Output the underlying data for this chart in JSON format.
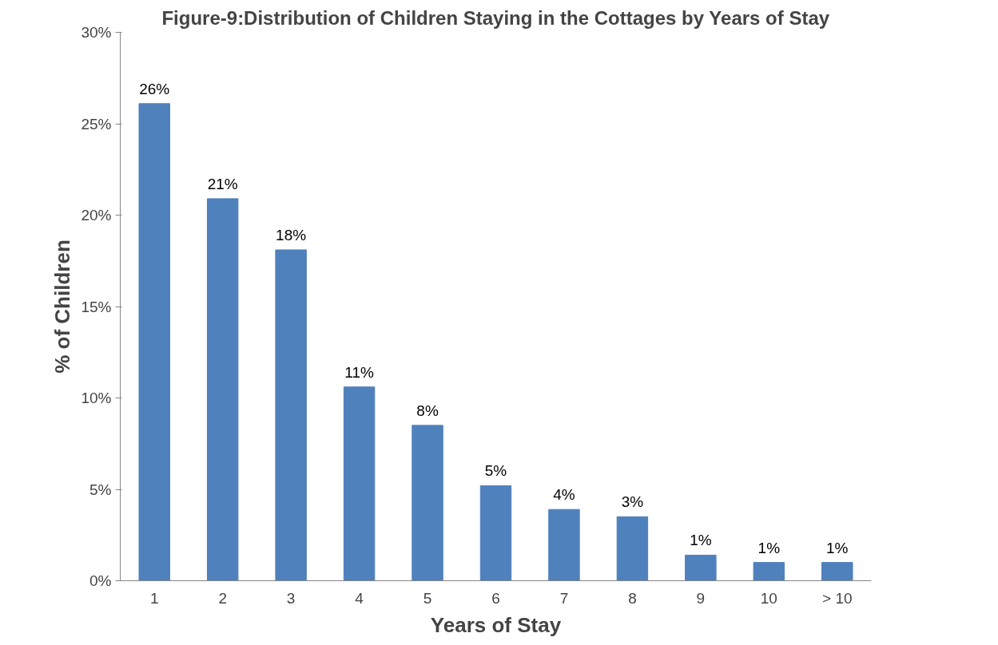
{
  "chart_data": {
    "type": "bar",
    "title": "Figure-9:Distribution of Children Staying in the Cottages by Years of Stay",
    "xlabel": "Years of Stay",
    "ylabel": "% of Children",
    "categories": [
      "1",
      "2",
      "3",
      "4",
      "5",
      "6",
      "7",
      "8",
      "9",
      "10",
      "> 10"
    ],
    "values": [
      26.1,
      20.9,
      18.1,
      10.6,
      8.5,
      5.2,
      3.9,
      3.5,
      1.4,
      1.0,
      1.0
    ],
    "value_labels": [
      "26%",
      "21%",
      "18%",
      "11%",
      "8%",
      "5%",
      "4%",
      "3%",
      "1%",
      "1%",
      "1%"
    ],
    "color": "#4f81bd",
    "ylim": [
      0,
      30
    ],
    "yticks": [
      {
        "value": 0,
        "label": "0%"
      },
      {
        "value": 5,
        "label": "5%"
      },
      {
        "value": 10,
        "label": "10%"
      },
      {
        "value": 15,
        "label": "15%"
      },
      {
        "value": 20,
        "label": "20%"
      },
      {
        "value": 25,
        "label": "25%"
      },
      {
        "value": 30,
        "label": "30%"
      }
    ],
    "grid": false
  }
}
